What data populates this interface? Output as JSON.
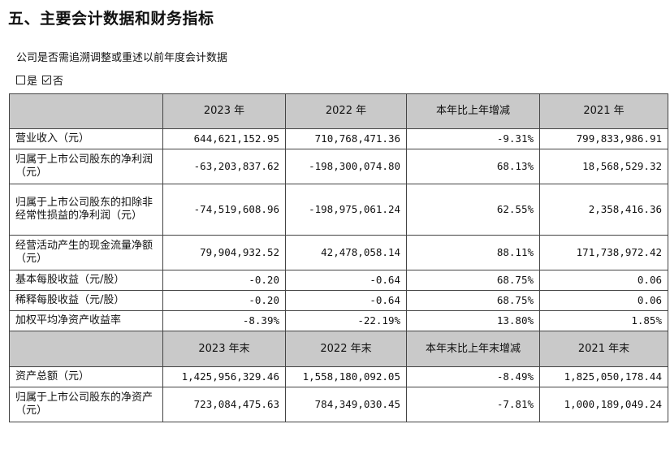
{
  "title": "五、主要会计数据和财务指标",
  "question": "公司是否需追溯调整或重述以前年度会计数据",
  "options": [
    {
      "label": "是",
      "checked": false
    },
    {
      "label": "否",
      "checked": true
    }
  ],
  "table1": {
    "headers": [
      "",
      "2023 年",
      "2022 年",
      "本年比上年增减",
      "2021 年"
    ],
    "rows": [
      {
        "label": "营业收入（元）",
        "values": [
          "644,621,152.95",
          "710,768,471.36",
          "-9.31%",
          "799,833,986.91"
        ]
      },
      {
        "label": "归属于上市公司股东的净利润（元）",
        "values": [
          "-63,203,837.62",
          "-198,300,074.80",
          "68.13%",
          "18,568,529.32"
        ]
      },
      {
        "label": "归属于上市公司股东的扣除非经常性损益的净利润（元）",
        "values": [
          "-74,519,608.96",
          "-198,975,061.24",
          "62.55%",
          "2,358,416.36"
        ]
      },
      {
        "label": "经营活动产生的现金流量净额（元）",
        "values": [
          "79,904,932.52",
          "42,478,058.14",
          "88.11%",
          "171,738,972.42"
        ]
      },
      {
        "label": "基本每股收益（元/股）",
        "values": [
          "-0.20",
          "-0.64",
          "68.75%",
          "0.06"
        ]
      },
      {
        "label": "稀释每股收益（元/股）",
        "values": [
          "-0.20",
          "-0.64",
          "68.75%",
          "0.06"
        ]
      },
      {
        "label": "加权平均净资产收益率",
        "values": [
          "-8.39%",
          "-22.19%",
          "13.80%",
          "1.85%"
        ]
      }
    ]
  },
  "table2": {
    "headers": [
      "",
      "2023 年末",
      "2022 年末",
      "本年末比上年末增减",
      "2021 年末"
    ],
    "rows": [
      {
        "label": "资产总额（元）",
        "values": [
          "1,425,956,329.46",
          "1,558,180,092.05",
          "-8.49%",
          "1,825,050,178.44"
        ]
      },
      {
        "label": "归属于上市公司股东的净资产（元）",
        "values": [
          "723,084,475.63",
          "784,349,030.45",
          "-7.81%",
          "1,000,189,049.24"
        ]
      }
    ]
  }
}
